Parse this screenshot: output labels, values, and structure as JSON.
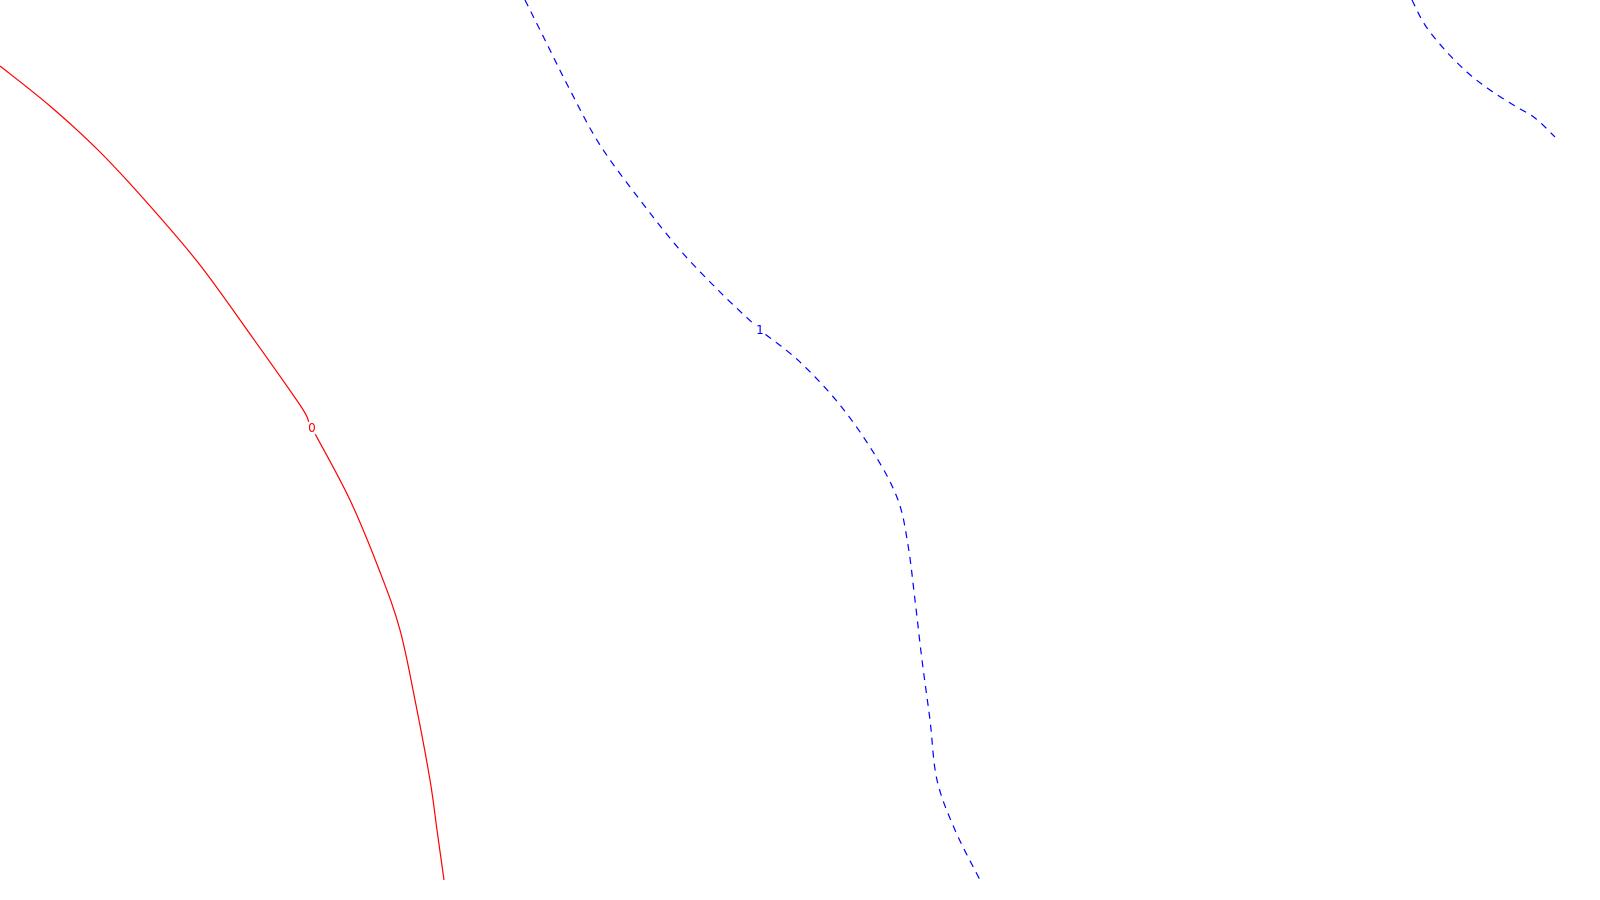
{
  "chart_data": {
    "type": "line",
    "colors": {
      "background": "#ffffff",
      "level_0": "#ff0000",
      "level_1": "#0000ff"
    },
    "series": [
      {
        "label": "0",
        "style": "solid",
        "color": "#ff0000",
        "points": [
          [
            0,
            66
          ],
          [
            50,
            106
          ],
          [
            100,
            152
          ],
          [
            150,
            206
          ],
          [
            200,
            265
          ],
          [
            250,
            334
          ],
          [
            300,
            405
          ],
          [
            312,
            428
          ],
          [
            350,
            500
          ],
          [
            380,
            572
          ],
          [
            400,
            630
          ],
          [
            415,
            700
          ],
          [
            430,
            780
          ],
          [
            437,
            830
          ],
          [
            444,
            880
          ]
        ]
      },
      {
        "label": "1",
        "style": "dashed",
        "color": "#0000ff",
        "points": [
          [
            525,
            0
          ],
          [
            545,
            40
          ],
          [
            570,
            90
          ],
          [
            600,
            145
          ],
          [
            640,
            200
          ],
          [
            680,
            250
          ],
          [
            720,
            292
          ],
          [
            760,
            330
          ],
          [
            800,
            362
          ],
          [
            840,
            405
          ],
          [
            875,
            455
          ],
          [
            898,
            500
          ],
          [
            908,
            545
          ],
          [
            915,
            600
          ],
          [
            922,
            660
          ],
          [
            930,
            720
          ],
          [
            937,
            780
          ],
          [
            955,
            830
          ],
          [
            980,
            880
          ]
        ]
      },
      {
        "style": "dashed",
        "color": "#0000ff",
        "points": [
          [
            1412,
            0
          ],
          [
            1425,
            25
          ],
          [
            1445,
            50
          ],
          [
            1468,
            73
          ],
          [
            1490,
            90
          ],
          [
            1515,
            106
          ],
          [
            1535,
            118
          ],
          [
            1555,
            137
          ]
        ]
      }
    ]
  }
}
